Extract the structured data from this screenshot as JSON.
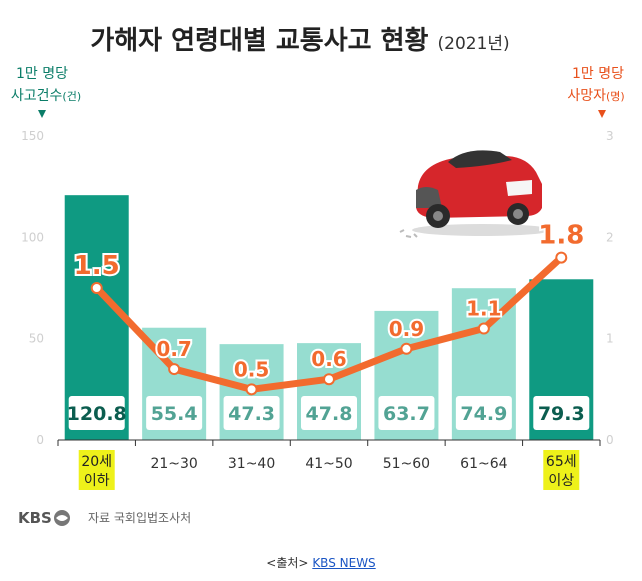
{
  "chart_data": {
    "type": "bar",
    "title": "가해자 연령대별 교통사고 현황",
    "title_year": "(2021년)",
    "left_axis": {
      "caption_line1": "1만 명당",
      "caption_line2": "사고건수",
      "caption_unit": "(건)",
      "ylim": [
        0,
        150
      ],
      "ticks": [
        "0",
        "50",
        "100",
        "150"
      ]
    },
    "right_axis": {
      "caption_line1": "1만 명당",
      "caption_line2": "사망자",
      "caption_unit": "(명)",
      "ylim": [
        0,
        3
      ],
      "ticks": [
        "0",
        "1",
        "2",
        "3"
      ]
    },
    "categories": [
      {
        "line1": "20세",
        "line2": "이하",
        "highlight": true
      },
      {
        "line1": "21~30",
        "line2": "",
        "highlight": false
      },
      {
        "line1": "31~40",
        "line2": "",
        "highlight": false
      },
      {
        "line1": "41~50",
        "line2": "",
        "highlight": false
      },
      {
        "line1": "51~60",
        "line2": "",
        "highlight": false
      },
      {
        "line1": "61~64",
        "line2": "",
        "highlight": false
      },
      {
        "line1": "65세",
        "line2": "이상",
        "highlight": true
      }
    ],
    "bar_values": [
      120.8,
      55.4,
      47.3,
      47.8,
      63.7,
      74.9,
      79.3
    ],
    "bar_labels": [
      "120.8",
      "55.4",
      "47.3",
      "47.8",
      "63.7",
      "74.9",
      "79.3"
    ],
    "line_values": [
      1.5,
      0.7,
      0.5,
      0.6,
      0.9,
      1.1,
      1.8
    ],
    "line_labels": [
      "1.5",
      "0.7",
      "0.5",
      "0.6",
      "0.9",
      "1.1",
      "1.8"
    ],
    "colors": {
      "bar_dark": "#0f9a82",
      "bar_light": "#96ddd0",
      "line": "#f26b2e",
      "highlight": "#eef11a",
      "left_axis": "#0b7d68",
      "right_axis": "#e8501b"
    },
    "grid": false,
    "legend": "none"
  },
  "footer": {
    "logo": "KBS",
    "source": "자료 국회입법조사처"
  },
  "caption": {
    "prefix": "<출처> ",
    "link": "KBS NEWS"
  }
}
